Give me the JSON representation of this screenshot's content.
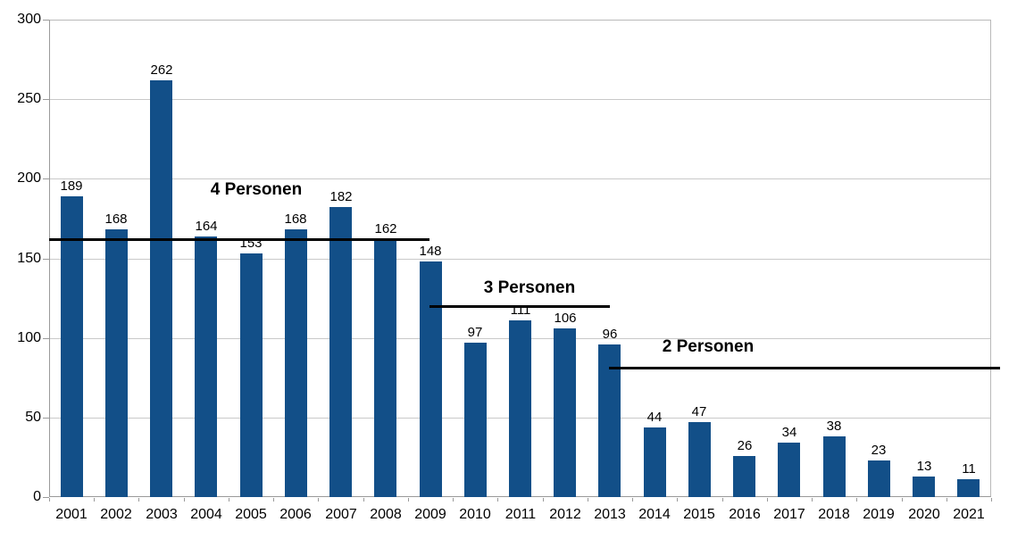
{
  "chart_data": {
    "type": "bar",
    "title": "",
    "xlabel": "",
    "ylabel": "",
    "categories": [
      "2001",
      "2002",
      "2003",
      "2004",
      "2005",
      "2006",
      "2007",
      "2008",
      "2009",
      "2010",
      "2011",
      "2012",
      "2013",
      "2014",
      "2015",
      "2016",
      "2017",
      "2018",
      "2019",
      "2020",
      "2021"
    ],
    "values": [
      189,
      168,
      262,
      164,
      153,
      168,
      182,
      162,
      148,
      97,
      111,
      106,
      96,
      44,
      47,
      26,
      34,
      38,
      23,
      13,
      11
    ],
    "ylim": [
      0,
      300
    ],
    "yticks": [
      0,
      50,
      100,
      150,
      200,
      250,
      300
    ],
    "grid": true,
    "legend": "none",
    "bar_color": "#124F88",
    "grid_color": "#c9c9c9",
    "axis_color": "#9a9a9a",
    "label_color": "#000000",
    "annotation_line_color": "#000000",
    "annotations": [
      {
        "text": "4 Personen",
        "value": 162,
        "from_cat": 0.0,
        "to_cat": 8.48,
        "label_cat": 4.62,
        "label_value": 187
      },
      {
        "text": "3 Personen",
        "value": 120,
        "from_cat": 8.48,
        "to_cat": 12.5,
        "label_cat": 10.71,
        "label_value": 125
      },
      {
        "text": "2 Personen",
        "value": 81,
        "from_cat": 12.48,
        "to_cat": 21.2,
        "label_cat": 14.69,
        "label_value": 88
      }
    ]
  }
}
